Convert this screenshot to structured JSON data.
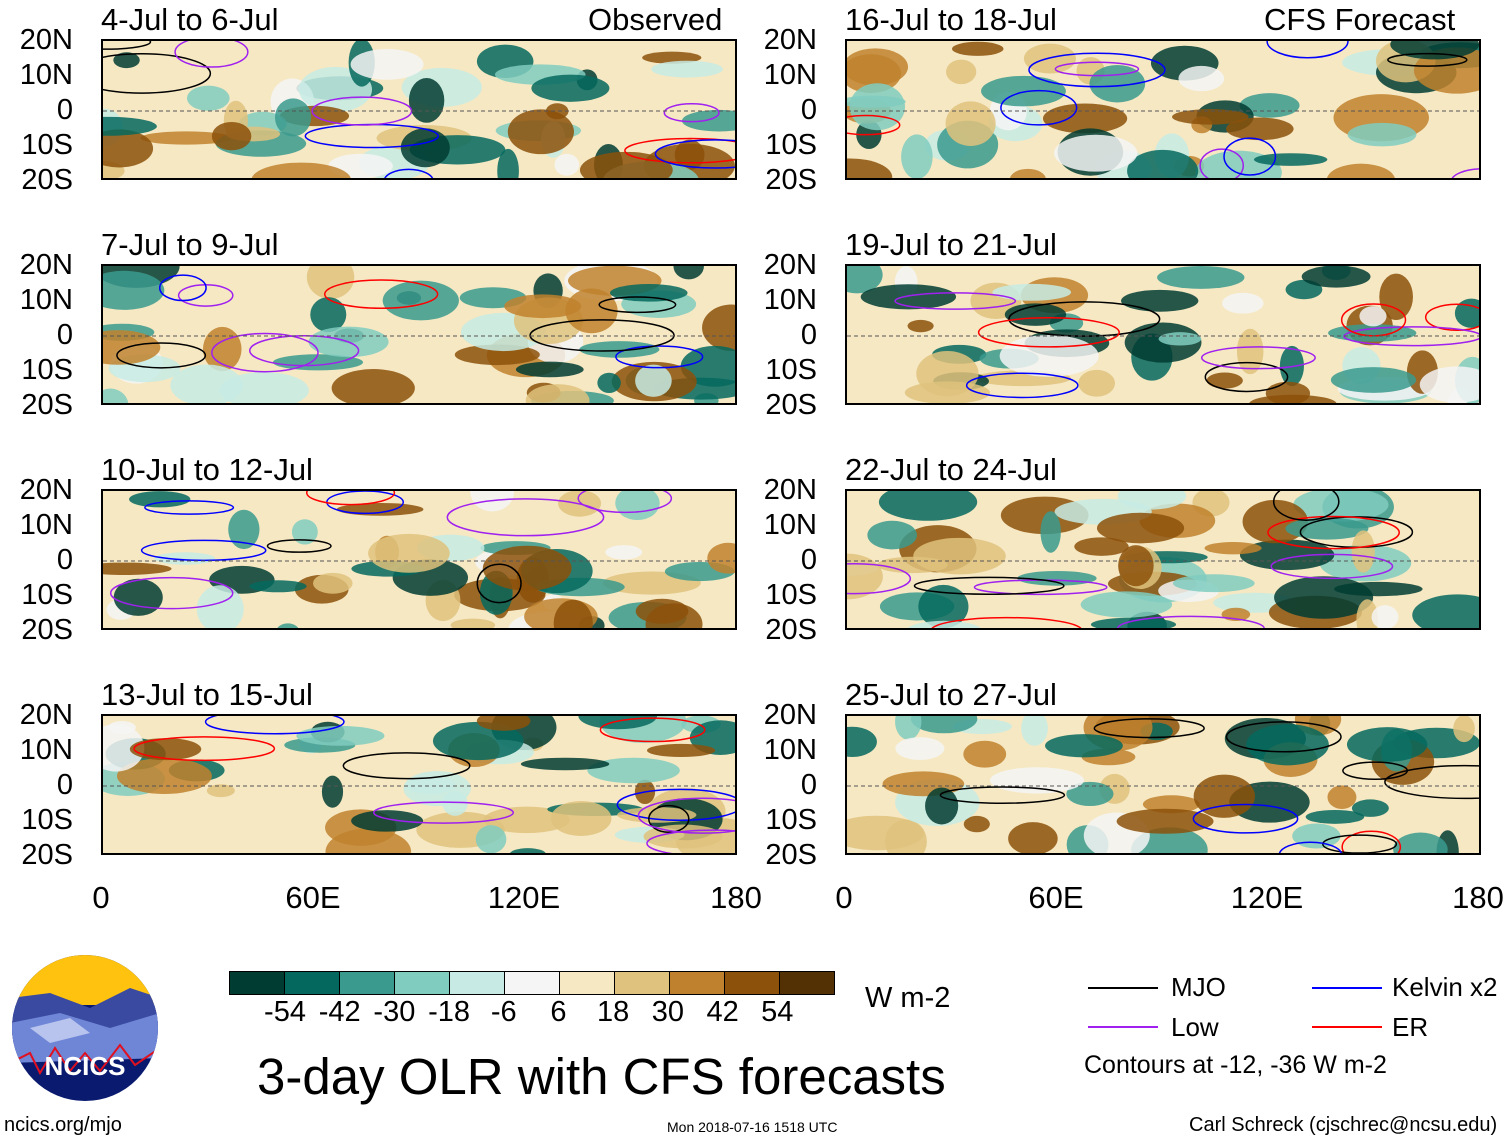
{
  "left_header": "Observed",
  "right_header": "CFS Forecast",
  "panels_left": [
    "4-Jul to 6-Jul",
    "7-Jul to 9-Jul",
    "10-Jul to 12-Jul",
    "13-Jul to 15-Jul"
  ],
  "panels_right": [
    "16-Jul to 18-Jul",
    "19-Jul to 21-Jul",
    "22-Jul to 24-Jul",
    "25-Jul to 27-Jul"
  ],
  "lat_labels": [
    "20N",
    "10N",
    "0",
    "10S",
    "20S"
  ],
  "lon_labels": [
    "0",
    "60E",
    "120E",
    "180"
  ],
  "colorbar": {
    "colors": [
      "#013c33",
      "#05685e",
      "#3a9a8e",
      "#80cdc0",
      "#c7ebe4",
      "#f5f5f5",
      "#f6e8c3",
      "#dfc27d",
      "#bf812d",
      "#8c510a",
      "#543005"
    ],
    "ticks": [
      "-54",
      "-42",
      "-30",
      "-18",
      "-6",
      "6",
      "18",
      "30",
      "42",
      "54"
    ],
    "units": "W m-2"
  },
  "legend": {
    "mjo": "MJO",
    "kelvin": "Kelvin x2",
    "low": "Low",
    "er": "ER",
    "colors": {
      "mjo": "#000000",
      "kelvin": "#0000ff",
      "low": "#a020f0",
      "er": "#ff0000"
    },
    "note": "Contours at -12, -36 W m-2"
  },
  "title": "3-day OLR with CFS forecasts",
  "logo_text": "NCICS",
  "footer": {
    "left": "ncics.org/mjo",
    "center": "Mon 2018-07-16 1518 UTC",
    "right": "Carl Schreck (cjschrec@ncsu.edu)"
  }
}
